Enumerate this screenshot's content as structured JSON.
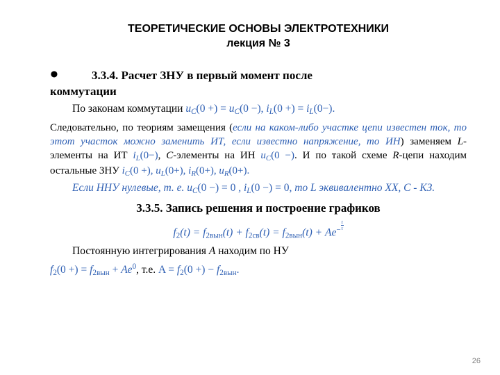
{
  "colors": {
    "text": "#000000",
    "blue": "#2e5fb3",
    "pagenum": "#808080",
    "background": "#ffffff"
  },
  "typography": {
    "body_family": "Times New Roman",
    "title_family": "Arial",
    "body_size_pt": 12,
    "heading_size_pt": 13,
    "title_size_pt": 12.5
  },
  "title_line1": "ТЕОРЕТИЧЕСКИЕ ОСНОВЫ ЭЛЕКТРОТЕХНИКИ",
  "title_line2": "лекция № 3",
  "section_334_no": "3.3.4. ",
  "section_334_title_l1": "Расчет  ЗНУ в первый момент после",
  "section_334_title_l2": "коммутации",
  "p1_a": "По законам коммутации ",
  "p1_m1_var": "u",
  "p1_m1_sub": "C",
  "p1_m1_arg": "(0 +) = ",
  "p1_m2_var": "u",
  "p1_m2_sub": "C",
  "p1_m2_arg": "(0 −), ",
  "p1_m3_var": "i",
  "p1_m3_sub": "L",
  "p1_m3_arg": "(0 +) = ",
  "p1_m4_var": "i",
  "p1_m4_sub": "L",
  "p1_m4_arg": "(0−).",
  "p2_a": "Следовательно, по теориям замещения (",
  "p2_b": "если на каком-либо участке цепи известен ток, то этот участок можно заменить ИТ, если известно напряжение, то ИН",
  "p2_c": ") заменяем ",
  "p2_d": "L",
  "p2_e": "-элементы на ИТ ",
  "p2_m1_var": "i",
  "p2_m1_sub": "L",
  "p2_m1_arg": "(0−)",
  "p2_f": ", ",
  "p2_g": "С",
  "p2_h": "-элементы  на ИН ",
  "p2_m2_var": "u",
  "p2_m2_sub": "C",
  "p2_m2_arg": "(0 −)",
  "p2_i": ". И по такой схеме ",
  "p2_j": "R",
  "p2_k": "-цепи находим остальные ЗНУ ",
  "p2_m3_var": "i",
  "p2_m3_sub": "C",
  "p2_m3_arg": "(0 +),",
  "p2_l": " ",
  "p2_m4_var": "u",
  "p2_m4_sub": "L",
  "p2_m4_arg": "(0+), ",
  "p2_m5_var": "i",
  "p2_m5_sub": "R",
  "p2_m5_arg": "(0+), ",
  "p2_m6_var": "u",
  "p2_m6_sub": "R",
  "p2_m6_arg": "(0+).",
  "p3_a": "Если ННУ нулевые, т. е. ",
  "p3_m1_var": "u",
  "p3_m1_sub": "C",
  "p3_m1_arg": "(0 −) = 0 ",
  "p3_b": ",  ",
  "p3_m2_var": "i",
  "p3_m2_sub": "L",
  "p3_m2_arg": "(0 −) = 0",
  "p3_c": ",   то L эквивалентно ХХ, С - КЗ.",
  "section_335": "3.3.5.  Запись решения и построение графиков",
  "eq_f2": "f",
  "eq_2": "2",
  "eq_t": "(t) = ",
  "eq_vyn": "2вын",
  "eq_sv": "2св",
  "eq_plus": "(t) + ",
  "eq_Ae": "Ae",
  "eq_exp_n": "−t",
  "eq_exp_d": "τ",
  "p4": "Постоянную интегрирования ",
  "p4_A": "А",
  "p4_b": " находим по НУ",
  "p5_m1_var": "f",
  "p5_m1_sub": "2",
  "p5_m1_arg": "(0 +) = ",
  "p5_m2_var": "f",
  "p5_m2_sub": "2вын",
  "p5_m2_arg": " + ",
  "p5_Ae": "Ae",
  "p5_exp0": "0",
  "p5_c": ", т.е. ",
  "p5_m3_pre": "A = ",
  "p5_m3_var": "f",
  "p5_m3_sub": "2",
  "p5_m3_arg": "(0 +) − ",
  "p5_m4_var": "f",
  "p5_m4_sub": "2вын",
  "p5_m4_arg": ".",
  "pagenum": "26"
}
